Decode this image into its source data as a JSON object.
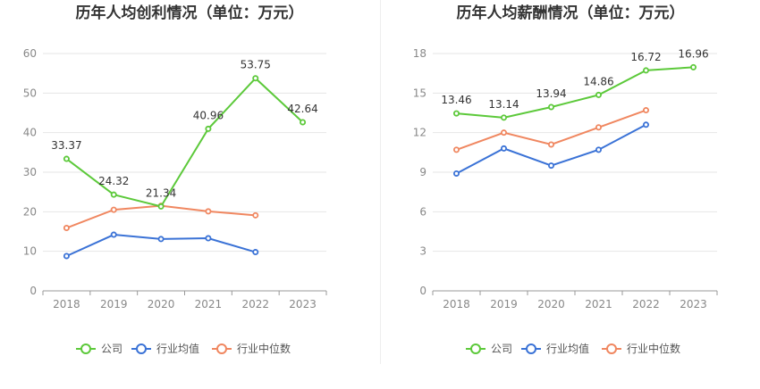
{
  "colors": {
    "company": "#5cc93a",
    "industry_avg": "#3a72d6",
    "industry_median": "#f08760"
  },
  "legend": [
    "公司",
    "行业均值",
    "行业中位数"
  ],
  "chart_data": [
    {
      "type": "line",
      "title": "历年人均创利情况（单位：万元）",
      "categories": [
        "2018",
        "2019",
        "2020",
        "2021",
        "2022",
        "2023"
      ],
      "ylim": [
        0,
        60
      ],
      "yticks": [
        0,
        10,
        20,
        30,
        40,
        50,
        60
      ],
      "series": [
        {
          "name": "公司",
          "values": [
            33.37,
            24.32,
            21.34,
            40.96,
            53.75,
            42.64
          ],
          "labels": [
            "33.37",
            "24.32",
            "21.34",
            "40.96",
            "53.75",
            "42.64"
          ]
        },
        {
          "name": "行业均值",
          "values": [
            8.8,
            14.2,
            13.1,
            13.3,
            9.8,
            null
          ]
        },
        {
          "name": "行业中位数",
          "values": [
            15.9,
            20.5,
            21.5,
            20.1,
            19.1,
            null
          ]
        }
      ]
    },
    {
      "type": "line",
      "title": "历年人均薪酬情况（单位：万元）",
      "categories": [
        "2018",
        "2019",
        "2020",
        "2021",
        "2022",
        "2023"
      ],
      "ylim": [
        0,
        18
      ],
      "yticks": [
        0,
        3,
        6,
        9,
        12,
        15,
        18
      ],
      "series": [
        {
          "name": "公司",
          "values": [
            13.46,
            13.14,
            13.94,
            14.86,
            16.72,
            16.96
          ],
          "labels": [
            "13.46",
            "13.14",
            "13.94",
            "14.86",
            "16.72",
            "16.96"
          ]
        },
        {
          "name": "行业均值",
          "values": [
            8.9,
            10.8,
            9.5,
            10.7,
            12.6,
            null
          ]
        },
        {
          "name": "行业中位数",
          "values": [
            10.7,
            12.0,
            11.1,
            12.4,
            13.7,
            null
          ]
        }
      ]
    }
  ]
}
